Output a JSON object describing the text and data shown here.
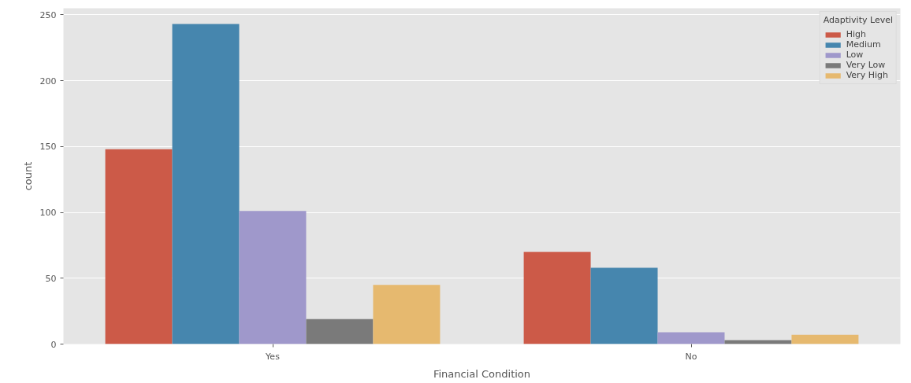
{
  "chart_data": {
    "type": "bar",
    "xlabel": "Financial Condition",
    "ylabel": "count",
    "legend_title": "Adaptivity Level",
    "categories": [
      "Yes",
      "No"
    ],
    "series": [
      {
        "name": "High",
        "color": "#cc5a48",
        "values": [
          148,
          70
        ]
      },
      {
        "name": "Medium",
        "color": "#4686ae",
        "values": [
          243,
          58
        ]
      },
      {
        "name": "Low",
        "color": "#9f98cb",
        "values": [
          101,
          9
        ]
      },
      {
        "name": "Very Low",
        "color": "#7a7a7a",
        "values": [
          19,
          3
        ]
      },
      {
        "name": "Very High",
        "color": "#e6b96f",
        "values": [
          45,
          7
        ]
      }
    ],
    "ylim": [
      0,
      255
    ],
    "yticks": [
      0,
      50,
      100,
      150,
      200,
      250
    ],
    "grid": true,
    "legend": "top right"
  }
}
